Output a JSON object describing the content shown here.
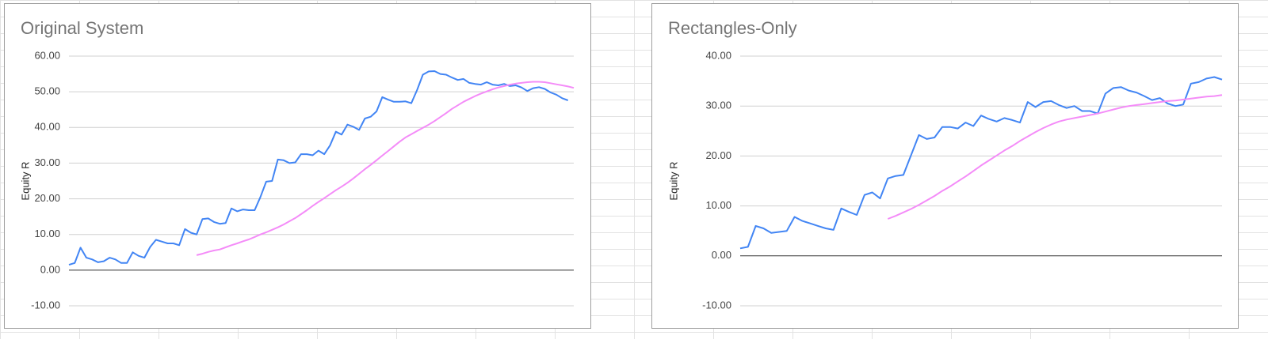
{
  "chart_data": [
    {
      "type": "line",
      "title": "Original System",
      "ylabel": "Equity R",
      "ylim": [
        -10,
        60
      ],
      "yticks": [
        {
          "value": -10,
          "label": "-10.00"
        },
        {
          "value": 0,
          "label": "0.00"
        },
        {
          "value": 10,
          "label": "10.00"
        },
        {
          "value": 20,
          "label": "20.00"
        },
        {
          "value": 30,
          "label": "30.00"
        },
        {
          "value": 40,
          "label": "40.00"
        },
        {
          "value": 50,
          "label": "50.00"
        },
        {
          "value": 60,
          "label": "60.00"
        }
      ],
      "grid": true,
      "series": [
        {
          "color": "#4285f4",
          "values": [
            1.5,
            2,
            6.3,
            3.5,
            3,
            2.2,
            2.5,
            3.5,
            3,
            2,
            2,
            5,
            4,
            3.5,
            6.5,
            8.5,
            8,
            7.5,
            7.5,
            7,
            11.5,
            10.5,
            10,
            14.3,
            14.5,
            13.5,
            13,
            13.2,
            17.3,
            16.5,
            17,
            16.8,
            16.8,
            20.5,
            24.8,
            25,
            31,
            30.8,
            30,
            30.2,
            32.5,
            32.5,
            32.2,
            33.5,
            32.5,
            35,
            38.8,
            38,
            40.8,
            40.2,
            39.3,
            42.5,
            43,
            44.5,
            48.5,
            47.8,
            47.2,
            47.2,
            47.3,
            46.8,
            50.5,
            54.8,
            55.7,
            55.8,
            55,
            54.8,
            54,
            53.3,
            53.6,
            52.5,
            52.2,
            52,
            52.7,
            52,
            51.8,
            52.2,
            51.6,
            51.8,
            51.2,
            50.2,
            51,
            51.3,
            50.8,
            49.8,
            49.2,
            48.2,
            47.6
          ]
        },
        {
          "color": "#f48cf8",
          "values": [
            null,
            null,
            null,
            null,
            null,
            null,
            null,
            null,
            null,
            null,
            null,
            null,
            null,
            null,
            null,
            null,
            null,
            null,
            null,
            null,
            null,
            null,
            4.2,
            4.6,
            5.1,
            5.5,
            5.8,
            6.4,
            7,
            7.5,
            8.1,
            8.6,
            9.3,
            10,
            10.6,
            11.3,
            12,
            12.8,
            13.7,
            14.6,
            15.7,
            16.8,
            18,
            19.1,
            20.2,
            21.3,
            22.4,
            23.4,
            24.5,
            25.7,
            27,
            28.3,
            29.5,
            30.8,
            32.1,
            33.4,
            34.7,
            36,
            37.2,
            38.1,
            39,
            39.9,
            40.8,
            41.8,
            42.9,
            44,
            45.2,
            46.2,
            47.2,
            48,
            48.8,
            49.5,
            50.1,
            50.7,
            51.2,
            51.6,
            52,
            52.3,
            52.5,
            52.7,
            52.8,
            52.8,
            52.7,
            52.4,
            52.1,
            51.8,
            51.5,
            51.1
          ]
        }
      ]
    },
    {
      "type": "line",
      "title": "Rectangles-Only",
      "ylabel": "Equity R",
      "ylim": [
        -10,
        40
      ],
      "yticks": [
        {
          "value": -10,
          "label": "-10.00"
        },
        {
          "value": 0,
          "label": "0.00"
        },
        {
          "value": 10,
          "label": "10.00"
        },
        {
          "value": 20,
          "label": "20.00"
        },
        {
          "value": 30,
          "label": "30.00"
        },
        {
          "value": 40,
          "label": "40.00"
        }
      ],
      "grid": true,
      "series": [
        {
          "color": "#4285f4",
          "values": [
            1.5,
            1.8,
            6,
            5.5,
            4.6,
            4.8,
            5,
            7.8,
            7,
            6.5,
            6,
            5.5,
            5.2,
            9.5,
            8.8,
            8.2,
            12.2,
            12.7,
            11.5,
            15.5,
            16,
            16.2,
            20.2,
            24.2,
            23.4,
            23.7,
            25.8,
            25.8,
            25.5,
            26.7,
            26,
            28.1,
            27.4,
            26.9,
            27.6,
            27.2,
            26.7,
            30.8,
            29.8,
            30.8,
            31,
            30.2,
            29.6,
            30,
            29,
            29,
            28.5,
            32.5,
            33.6,
            33.8,
            33.1,
            32.7,
            32,
            31.2,
            31.6,
            30.5,
            30,
            30.3,
            34.5,
            34.8,
            35.5,
            35.8,
            35.3
          ]
        },
        {
          "color": "#f48cf8",
          "values": [
            null,
            null,
            null,
            null,
            null,
            null,
            null,
            null,
            null,
            null,
            null,
            null,
            null,
            null,
            null,
            null,
            null,
            null,
            null,
            7.4,
            8,
            8.7,
            9.4,
            10.2,
            11.1,
            12,
            13,
            13.9,
            14.9,
            15.9,
            17,
            18.1,
            19.1,
            20.1,
            21.1,
            22,
            23,
            23.9,
            24.8,
            25.6,
            26.3,
            26.9,
            27.3,
            27.6,
            27.9,
            28.2,
            28.5,
            28.9,
            29.3,
            29.7,
            30,
            30.2,
            30.4,
            30.6,
            30.8,
            31,
            31.1,
            31.3,
            31.5,
            31.7,
            31.9,
            32,
            32.2
          ]
        }
      ]
    }
  ]
}
